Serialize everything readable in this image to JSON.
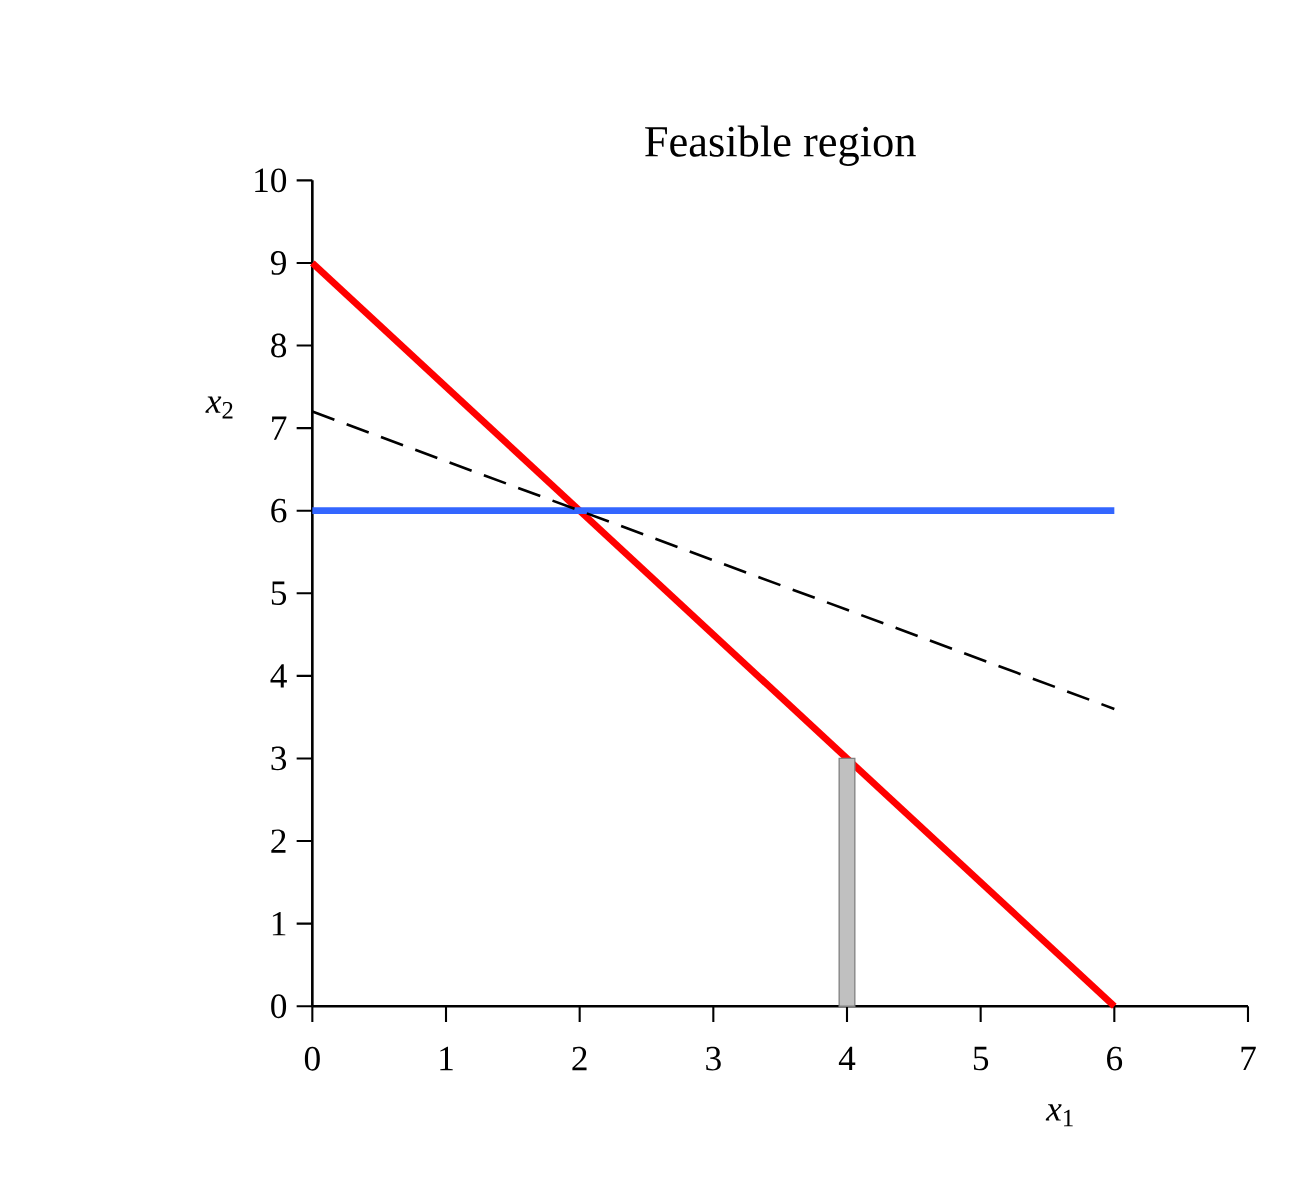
{
  "chart_data": {
    "type": "line",
    "title": "Feasible region",
    "xlabel": "*x*$_{1}$",
    "ylabel": "*x*$_{2}$",
    "xlim": [
      0,
      7
    ],
    "ylim": [
      0,
      10
    ],
    "xticks": [
      0,
      1,
      2,
      3,
      4,
      5,
      6,
      7
    ],
    "yticks": [
      0,
      1,
      2,
      3,
      4,
      5,
      6,
      7,
      8,
      9,
      10
    ],
    "grid": false,
    "series": [
      {
        "color": "#ff0000",
        "x": [
          0,
          6
        ],
        "values": [
          9,
          0
        ],
        "line_style": "solid"
      },
      {
        "color": "#3366ff",
        "x": [
          0,
          6
        ],
        "values": [
          6,
          6
        ],
        "line_style": "solid"
      },
      {
        "color": "#000000",
        "x": [
          0,
          6
        ],
        "values": [
          7.2,
          3.6
        ],
        "line_style": "dashed"
      },
      {
        "type": "bar",
        "color": "#c0c0c0",
        "x": [
          4
        ],
        "values": [
          3
        ]
      }
    ]
  }
}
